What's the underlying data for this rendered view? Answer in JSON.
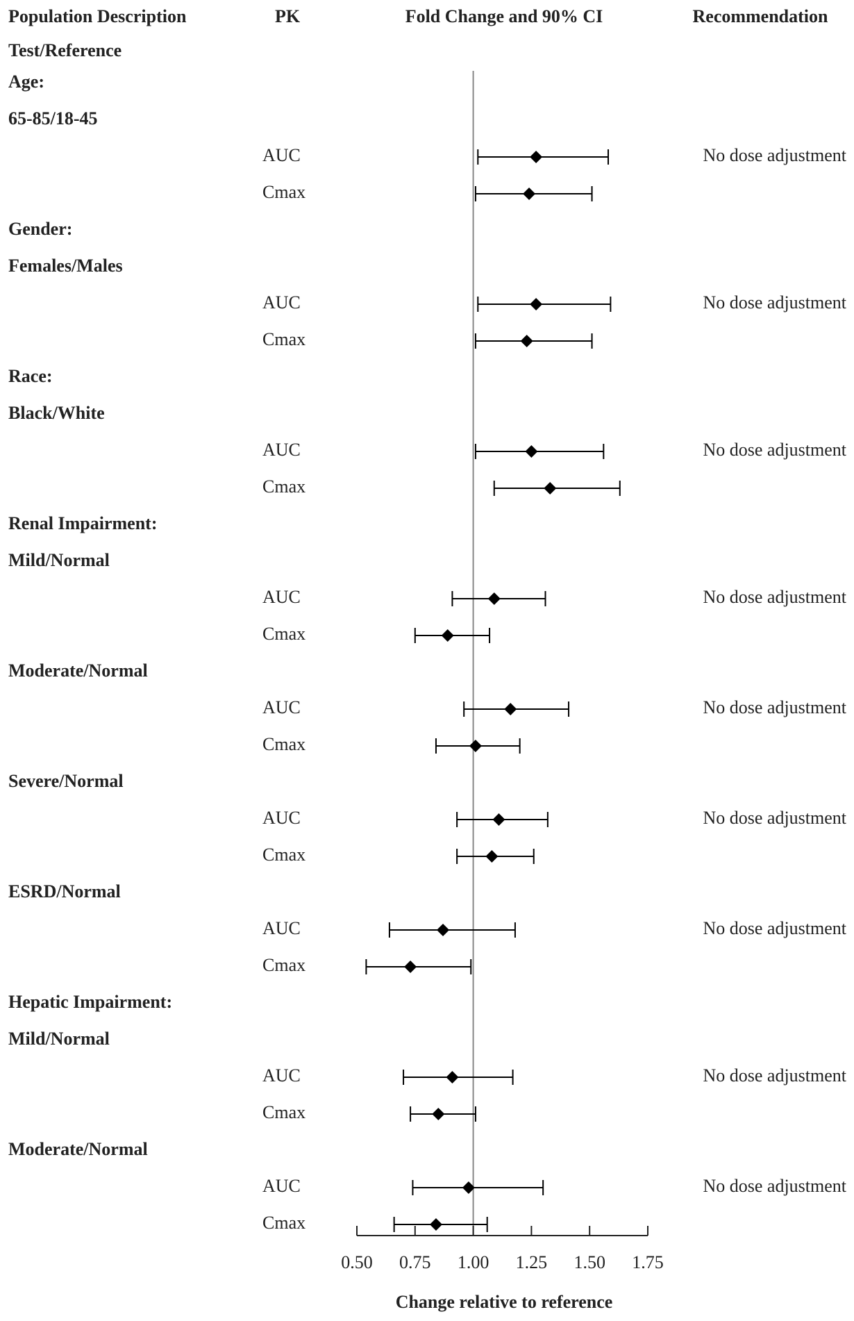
{
  "chart_data": {
    "type": "forest",
    "headers": {
      "population": "Population Description",
      "population_sub": "Test/Reference",
      "pk": "PK",
      "ci": "Fold Change and 90% CI",
      "recommendation": "Recommendation"
    },
    "x_label": "Change relative to reference",
    "xlim": [
      0.5,
      1.75
    ],
    "xticks": [
      {
        "value": 0.5,
        "label": "0.50"
      },
      {
        "value": 0.75,
        "label": "0.75"
      },
      {
        "value": 1,
        "label": "1.00"
      },
      {
        "value": 1.25,
        "label": "1.25"
      },
      {
        "value": 1.5,
        "label": "1.50"
      },
      {
        "value": 1.75,
        "label": "1.75"
      }
    ],
    "reference_line": 1,
    "color": "#000000",
    "rows": [
      {
        "label": "Age:"
      },
      {
        "label": "65-85/18-45"
      },
      {
        "pk": "AUC",
        "lower": 1.02,
        "estimate": 1.27,
        "upper": 1.58,
        "recommendation": "No dose adjustment"
      },
      {
        "pk": "Cmax",
        "lower": 1.01,
        "estimate": 1.24,
        "upper": 1.51
      },
      {
        "label": "Gender:"
      },
      {
        "label": "Females/Males"
      },
      {
        "pk": "AUC",
        "lower": 1.02,
        "estimate": 1.27,
        "upper": 1.59,
        "recommendation": "No dose adjustment"
      },
      {
        "pk": "Cmax",
        "lower": 1.01,
        "estimate": 1.23,
        "upper": 1.51
      },
      {
        "label": "Race:"
      },
      {
        "label": "Black/White"
      },
      {
        "pk": "AUC",
        "lower": 1.01,
        "estimate": 1.25,
        "upper": 1.56,
        "recommendation": "No dose adjustment"
      },
      {
        "pk": "Cmax",
        "lower": 1.09,
        "estimate": 1.33,
        "upper": 1.63
      },
      {
        "label": "Renal Impairment:"
      },
      {
        "label": "Mild/Normal"
      },
      {
        "pk": "AUC",
        "lower": 0.91,
        "estimate": 1.09,
        "upper": 1.31,
        "recommendation": "No dose adjustment"
      },
      {
        "pk": "Cmax",
        "lower": 0.75,
        "estimate": 0.89,
        "upper": 1.07
      },
      {
        "label": "Moderate/Normal"
      },
      {
        "pk": "AUC",
        "lower": 0.96,
        "estimate": 1.16,
        "upper": 1.41,
        "recommendation": "No dose adjustment"
      },
      {
        "pk": "Cmax",
        "lower": 0.84,
        "estimate": 1.01,
        "upper": 1.2
      },
      {
        "label": "Severe/Normal"
      },
      {
        "pk": "AUC",
        "lower": 0.93,
        "estimate": 1.11,
        "upper": 1.32,
        "recommendation": "No dose adjustment"
      },
      {
        "pk": "Cmax",
        "lower": 0.93,
        "estimate": 1.08,
        "upper": 1.26
      },
      {
        "label": "ESRD/Normal"
      },
      {
        "pk": "AUC",
        "lower": 0.64,
        "estimate": 0.87,
        "upper": 1.18,
        "recommendation": "No dose adjustment"
      },
      {
        "pk": "Cmax",
        "lower": 0.54,
        "estimate": 0.73,
        "upper": 0.99
      },
      {
        "label": "Hepatic Impairment:"
      },
      {
        "label": "Mild/Normal"
      },
      {
        "pk": "AUC",
        "lower": 0.7,
        "estimate": 0.91,
        "upper": 1.17,
        "recommendation": "No dose adjustment"
      },
      {
        "pk": "Cmax",
        "lower": 0.73,
        "estimate": 0.85,
        "upper": 1.01
      },
      {
        "label": "Moderate/Normal"
      },
      {
        "pk": "AUC",
        "lower": 0.74,
        "estimate": 0.98,
        "upper": 1.3,
        "recommendation": "No dose adjustment"
      },
      {
        "pk": "Cmax",
        "lower": 0.66,
        "estimate": 0.84,
        "upper": 1.06
      }
    ]
  }
}
